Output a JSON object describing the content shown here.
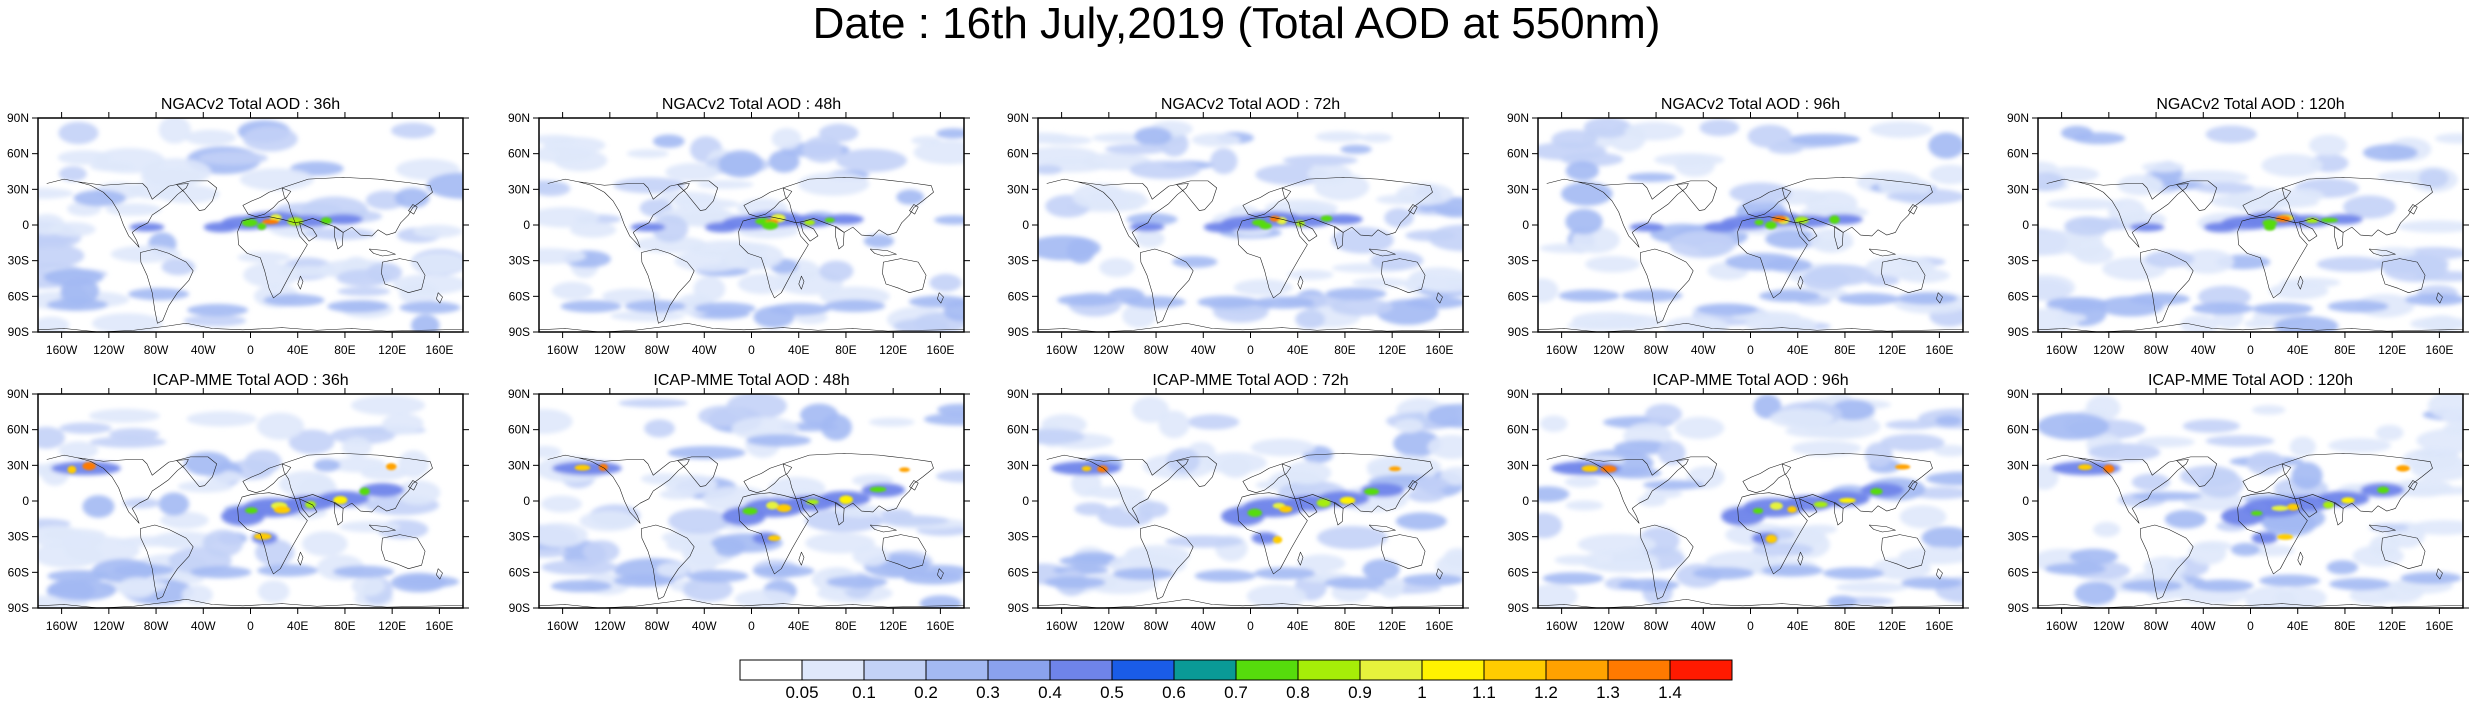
{
  "title": "Date : 16th July,2019 (Total AOD at 550nm)",
  "lat_labels": [
    "90N",
    "60N",
    "30N",
    "0",
    "30S",
    "60S",
    "90S"
  ],
  "lon_labels": [
    "160W",
    "120W",
    "80W",
    "40W",
    "0",
    "40E",
    "80E",
    "120E",
    "160E"
  ],
  "panels": [
    {
      "title": "NGACv2 Total AOD : 36h",
      "model": "NGACv2",
      "lead": "36h"
    },
    {
      "title": "NGACv2 Total AOD : 48h",
      "model": "NGACv2",
      "lead": "48h"
    },
    {
      "title": "NGACv2 Total AOD : 72h",
      "model": "NGACv2",
      "lead": "72h"
    },
    {
      "title": "NGACv2 Total AOD : 96h",
      "model": "NGACv2",
      "lead": "96h"
    },
    {
      "title": "NGACv2 Total AOD : 120h",
      "model": "NGACv2",
      "lead": "120h"
    },
    {
      "title": "ICAP-MME Total AOD : 36h",
      "model": "ICAP-MME",
      "lead": "36h"
    },
    {
      "title": "ICAP-MME Total AOD : 48h",
      "model": "ICAP-MME",
      "lead": "48h"
    },
    {
      "title": "ICAP-MME Total AOD : 72h",
      "model": "ICAP-MME",
      "lead": "72h"
    },
    {
      "title": "ICAP-MME Total AOD : 96h",
      "model": "ICAP-MME",
      "lead": "96h"
    },
    {
      "title": "ICAP-MME Total AOD : 120h",
      "model": "ICAP-MME",
      "lead": "120h"
    }
  ],
  "colorbar": {
    "labels": [
      "0.05",
      "0.1",
      "0.2",
      "0.3",
      "0.4",
      "0.5",
      "0.6",
      "0.7",
      "0.8",
      "0.9",
      "1",
      "1.1",
      "1.2",
      "1.3",
      "1.4"
    ],
    "colors": [
      "#ffffff",
      "#dfe8fb",
      "#c3d2f7",
      "#a3b9f3",
      "#8aa2ee",
      "#6f84ea",
      "#1a5ce8",
      "#0a9a96",
      "#56dc0c",
      "#a6ee08",
      "#e6f23c",
      "#fff200",
      "#ffcc00",
      "#ffa200",
      "#ff7a00",
      "#ff1a00"
    ]
  }
}
